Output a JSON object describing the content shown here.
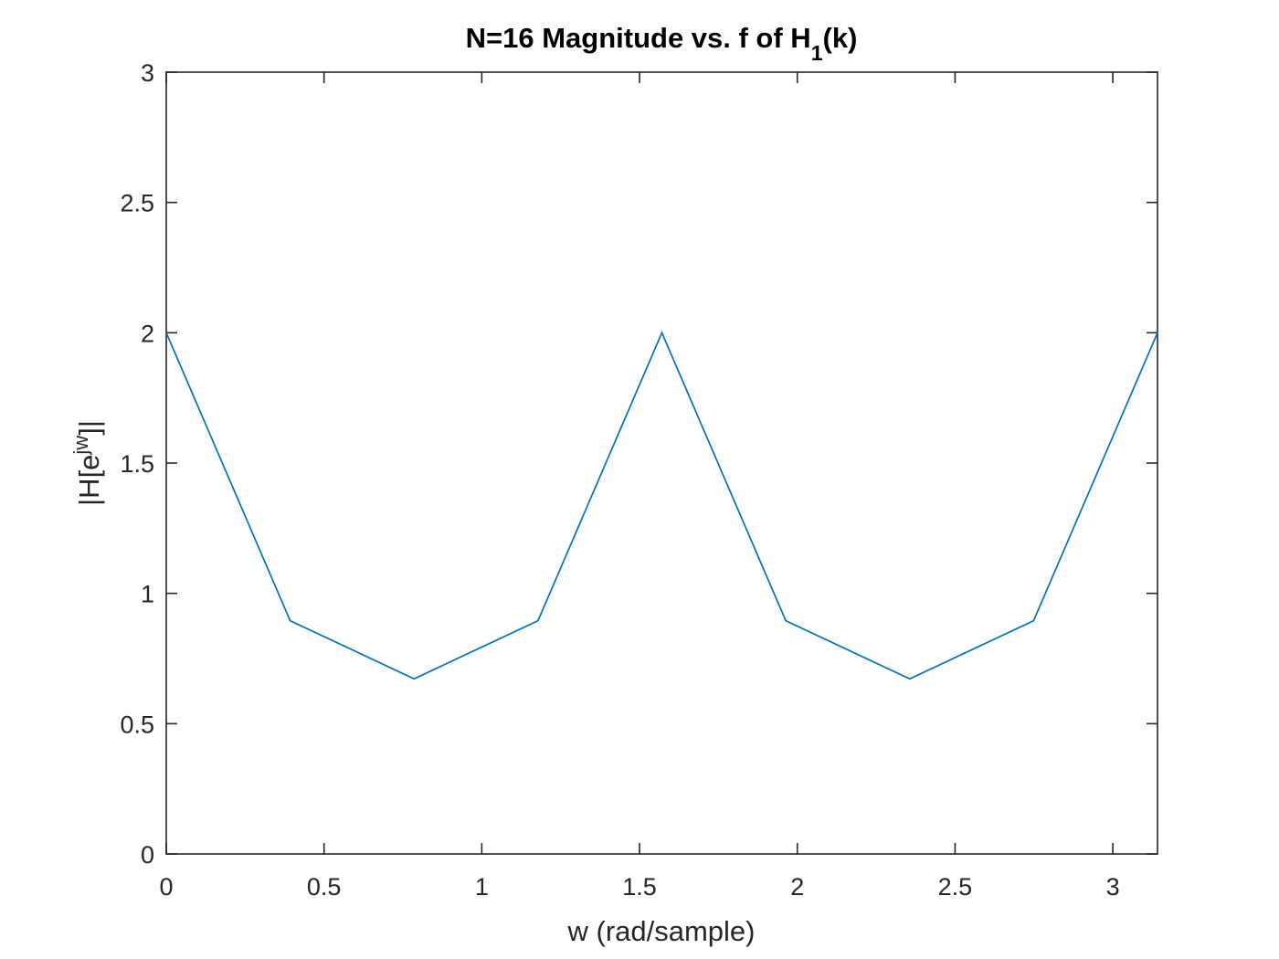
{
  "chart_data": {
    "type": "line",
    "title": {
      "prefix": "N=16 Magnitude vs. f of H",
      "subscript": "1",
      "suffix": "(k)"
    },
    "xlabel": "w (rad/sample)",
    "ylabel": {
      "prefix": "|H[e",
      "superscript": "jw",
      "suffix": "]|"
    },
    "xlim": [
      0,
      3.1416
    ],
    "ylim": [
      0,
      3
    ],
    "xticks": [
      0,
      0.5,
      1,
      1.5,
      2,
      2.5,
      3
    ],
    "xtick_labels": [
      "0",
      "0.5",
      "1",
      "1.5",
      "2",
      "2.5",
      "3"
    ],
    "yticks": [
      0,
      0.5,
      1,
      1.5,
      2,
      2.5,
      3
    ],
    "ytick_labels": [
      "0",
      "0.5",
      "1",
      "1.5",
      "2",
      "2.5",
      "3"
    ],
    "grid": false,
    "box": true,
    "series": [
      {
        "color": "#0072BD",
        "x": [
          0,
          0.3927,
          0.7854,
          1.1781,
          1.5708,
          1.9635,
          2.3562,
          2.7489,
          3.1416
        ],
        "y": [
          2.0,
          0.895,
          0.672,
          0.895,
          2.0,
          0.895,
          0.672,
          0.895,
          2.0
        ]
      }
    ],
    "axes_color": "#262626"
  }
}
